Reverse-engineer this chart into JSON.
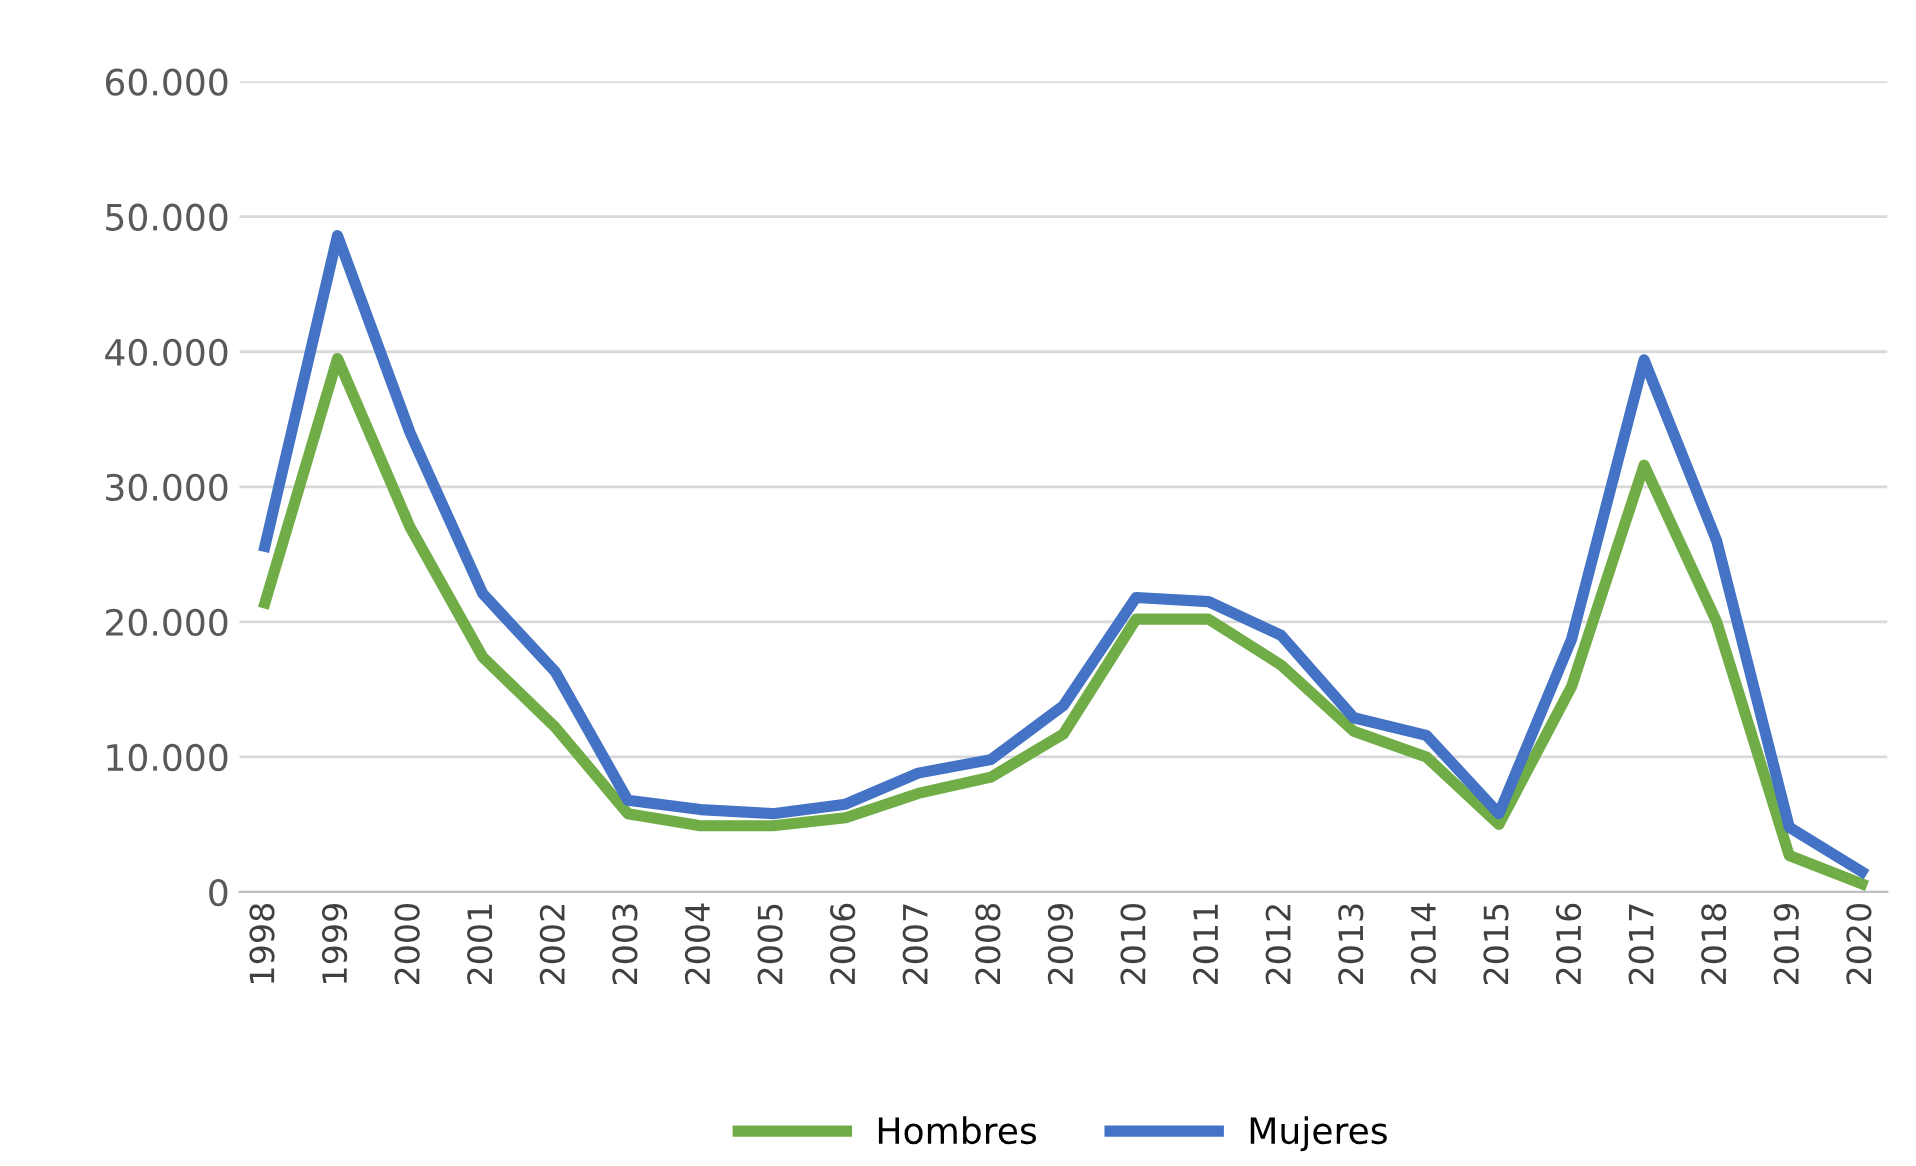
{
  "chart_data": {
    "type": "line",
    "categories": [
      "1998",
      "1999",
      "2000",
      "2001",
      "2002",
      "2003",
      "2004",
      "2005",
      "2006",
      "2007",
      "2008",
      "2009",
      "2010",
      "2011",
      "2012",
      "2013",
      "2014",
      "2015",
      "2016",
      "2017",
      "2018",
      "2019",
      "2020"
    ],
    "series": [
      {
        "name": "Hombres",
        "color": "#70ad47",
        "values": [
          21400,
          39500,
          27000,
          17400,
          12200,
          5800,
          4900,
          4900,
          5500,
          7300,
          8500,
          11700,
          20200,
          20200,
          16800,
          11900,
          10000,
          5000,
          15200,
          31600,
          20000,
          2700,
          600
        ]
      },
      {
        "name": "Mujeres",
        "color": "#4472c4",
        "values": [
          25600,
          48600,
          34000,
          22100,
          16300,
          6800,
          6100,
          5800,
          6500,
          8800,
          9800,
          13800,
          21800,
          21500,
          19000,
          12900,
          11600,
          5800,
          18700,
          39400,
          26000,
          4800,
          1500
        ]
      }
    ],
    "ylim": [
      0,
      60000
    ],
    "yticks": [
      {
        "value": 0,
        "label": "0"
      },
      {
        "value": 10000,
        "label": "10.000"
      },
      {
        "value": 20000,
        "label": "20.000"
      },
      {
        "value": 30000,
        "label": "30.000"
      },
      {
        "value": 40000,
        "label": "40.000"
      },
      {
        "value": 50000,
        "label": "50.000"
      },
      {
        "value": 60000,
        "label": "60.000"
      }
    ],
    "grid": "y",
    "legend": "bottom",
    "marker": "none",
    "line_style": "solid"
  }
}
